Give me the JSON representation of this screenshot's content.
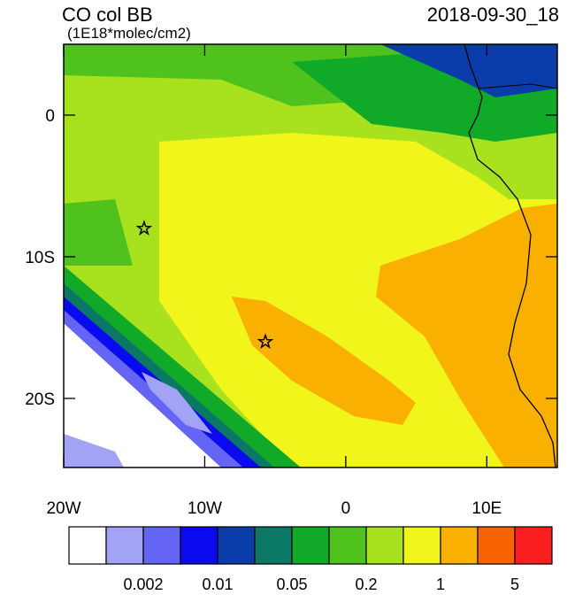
{
  "title": "CO col BB",
  "units": "(1E18*molec/cm2)",
  "date": "2018-09-30_18",
  "map": {
    "xlim": [
      -20,
      15
    ],
    "ylim": [
      -25,
      5
    ],
    "xticks": [
      {
        "value": -20,
        "label": "20W"
      },
      {
        "value": -10,
        "label": "10W"
      },
      0,
      {
        "value": 10,
        "label": "10E"
      }
    ],
    "yticks": [
      0,
      {
        "value": -10,
        "label": "10S"
      },
      {
        "value": -20,
        "label": "20S"
      }
    ],
    "markers": [
      {
        "lon": -14.3,
        "lat": -8
      },
      {
        "lon": -5.7,
        "lat": -16
      }
    ]
  },
  "colorbar": {
    "colors": [
      "#ffffff",
      "#a3a3f5",
      "#6464f5",
      "#0a0af0",
      "#0a3caa",
      "#0a7864",
      "#10aa28",
      "#50c21e",
      "#a8e21e",
      "#f2f51a",
      "#f9b000",
      "#fa6400",
      "#fa1e1e"
    ],
    "labels": [
      "0.002",
      "0.01",
      "0.05",
      "0.2",
      "1",
      "5"
    ]
  }
}
